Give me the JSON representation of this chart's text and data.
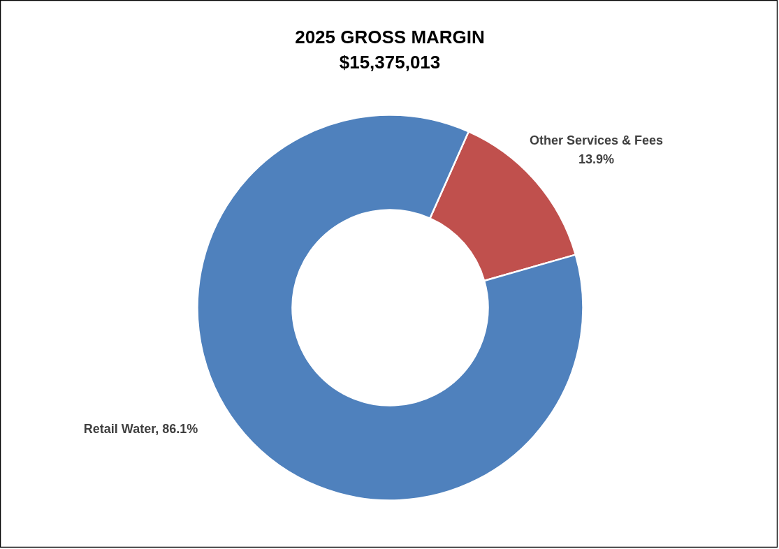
{
  "chart_data": {
    "type": "donut",
    "title": "2025 GROSS MARGIN",
    "subtitle": "$15,375,013",
    "categories": [
      "Other Services & Fees",
      "Retail Water"
    ],
    "values": [
      13.9,
      86.1
    ],
    "colors": [
      "#c0504d",
      "#4f81bd"
    ],
    "value_labels": [
      "13.9%",
      "86.1%"
    ]
  }
}
